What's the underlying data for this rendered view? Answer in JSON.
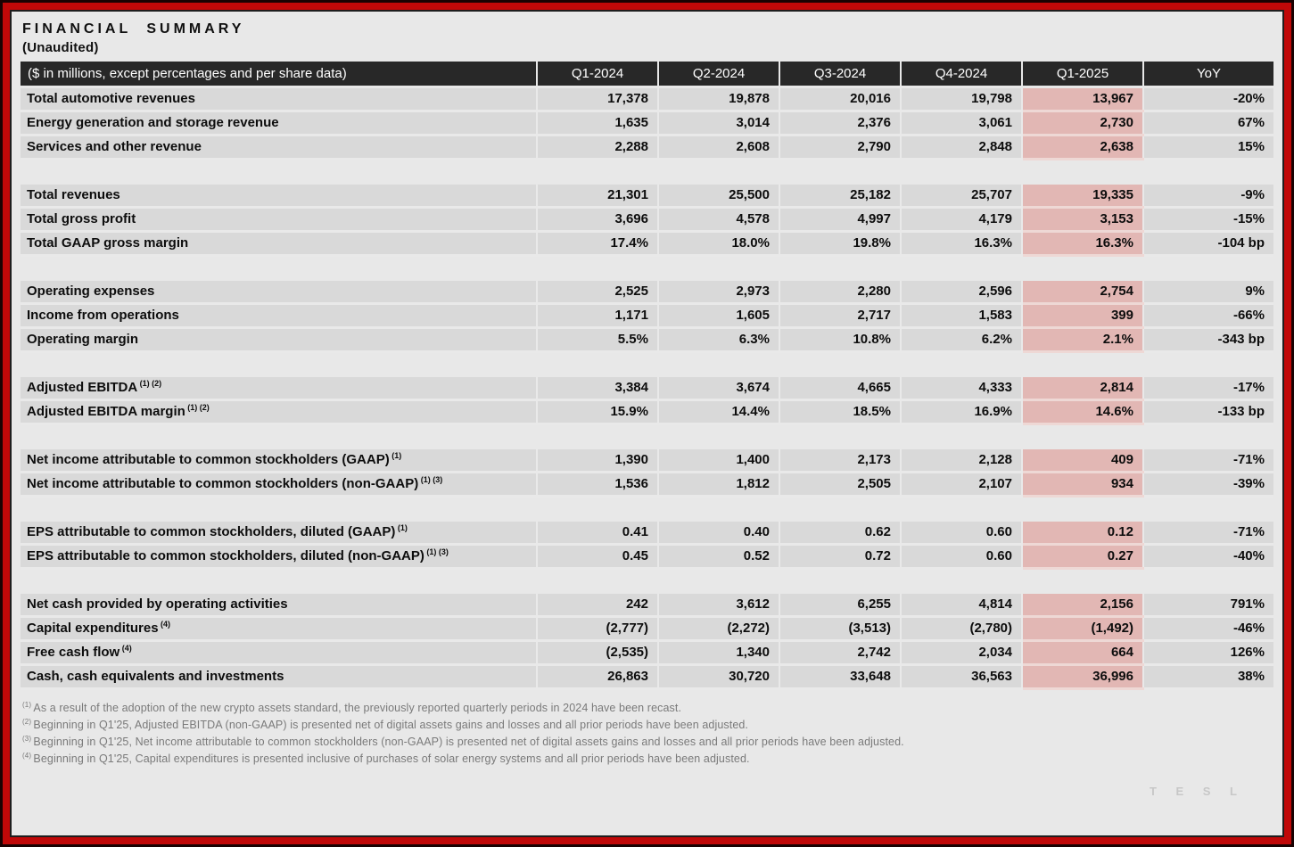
{
  "title": "FINANCIAL SUMMARY",
  "subtitle": "(Unaudited)",
  "watermark": "T E S L",
  "colors": {
    "border_red": "#c00808",
    "header_bg": "#282828",
    "row_bg": "#d9d9d9",
    "page_bg": "#e8e8e8",
    "highlight_pink": "#e2b7b4"
  },
  "table": {
    "label_header": "($ in millions, except percentages and per share data)",
    "columns": [
      "Q1-2024",
      "Q2-2024",
      "Q3-2024",
      "Q4-2024",
      "Q1-2025",
      "YoY"
    ],
    "highlight_column": "Q1-2025",
    "sections": [
      {
        "rows": [
          {
            "label": "Total automotive revenues",
            "sup": "",
            "values": [
              "17,378",
              "19,878",
              "20,016",
              "19,798",
              "13,967",
              "-20%"
            ]
          },
          {
            "label": "Energy generation and storage revenue",
            "sup": "",
            "values": [
              "1,635",
              "3,014",
              "2,376",
              "3,061",
              "2,730",
              "67%"
            ]
          },
          {
            "label": "Services and other revenue",
            "sup": "",
            "values": [
              "2,288",
              "2,608",
              "2,790",
              "2,848",
              "2,638",
              "15%"
            ]
          }
        ]
      },
      {
        "rows": [
          {
            "label": "Total revenues",
            "sup": "",
            "values": [
              "21,301",
              "25,500",
              "25,182",
              "25,707",
              "19,335",
              "-9%"
            ]
          },
          {
            "label": "Total gross profit",
            "sup": "",
            "values": [
              "3,696",
              "4,578",
              "4,997",
              "4,179",
              "3,153",
              "-15%"
            ]
          },
          {
            "label": "Total GAAP gross margin",
            "sup": "",
            "values": [
              "17.4%",
              "18.0%",
              "19.8%",
              "16.3%",
              "16.3%",
              "-104 bp"
            ]
          }
        ]
      },
      {
        "rows": [
          {
            "label": "Operating expenses",
            "sup": "",
            "values": [
              "2,525",
              "2,973",
              "2,280",
              "2,596",
              "2,754",
              "9%"
            ]
          },
          {
            "label": "Income from operations",
            "sup": "",
            "values": [
              "1,171",
              "1,605",
              "2,717",
              "1,583",
              "399",
              "-66%"
            ]
          },
          {
            "label": "Operating margin",
            "sup": "",
            "values": [
              "5.5%",
              "6.3%",
              "10.8%",
              "6.2%",
              "2.1%",
              "-343 bp"
            ]
          }
        ]
      },
      {
        "rows": [
          {
            "label": "Adjusted EBITDA",
            "sup": "(1) (2)",
            "values": [
              "3,384",
              "3,674",
              "4,665",
              "4,333",
              "2,814",
              "-17%"
            ]
          },
          {
            "label": "Adjusted EBITDA margin",
            "sup": "(1) (2)",
            "values": [
              "15.9%",
              "14.4%",
              "18.5%",
              "16.9%",
              "14.6%",
              "-133 bp"
            ]
          }
        ]
      },
      {
        "rows": [
          {
            "label": "Net income attributable to common stockholders (GAAP)",
            "sup": "(1)",
            "values": [
              "1,390",
              "1,400",
              "2,173",
              "2,128",
              "409",
              "-71%"
            ]
          },
          {
            "label": "Net income attributable to common stockholders (non-GAAP)",
            "sup": "(1) (3)",
            "values": [
              "1,536",
              "1,812",
              "2,505",
              "2,107",
              "934",
              "-39%"
            ]
          }
        ]
      },
      {
        "rows": [
          {
            "label": "EPS attributable to common stockholders, diluted (GAAP)",
            "sup": "(1)",
            "values": [
              "0.41",
              "0.40",
              "0.62",
              "0.60",
              "0.12",
              "-71%"
            ]
          },
          {
            "label": "EPS attributable to common stockholders, diluted (non-GAAP)",
            "sup": "(1) (3)",
            "values": [
              "0.45",
              "0.52",
              "0.72",
              "0.60",
              "0.27",
              "-40%"
            ]
          }
        ]
      },
      {
        "rows": [
          {
            "label": "Net cash provided by operating activities",
            "sup": "",
            "values": [
              "242",
              "3,612",
              "6,255",
              "4,814",
              "2,156",
              "791%"
            ]
          },
          {
            "label": "Capital expenditures",
            "sup": "(4)",
            "values": [
              "(2,777)",
              "(2,272)",
              "(3,513)",
              "(2,780)",
              "(1,492)",
              "-46%"
            ]
          },
          {
            "label": "Free cash flow",
            "sup": "(4)",
            "values": [
              "(2,535)",
              "1,340",
              "2,742",
              "2,034",
              "664",
              "126%"
            ]
          },
          {
            "label": "Cash, cash equivalents and investments",
            "sup": "",
            "values": [
              "26,863",
              "30,720",
              "33,648",
              "36,563",
              "36,996",
              "38%"
            ]
          }
        ]
      }
    ]
  },
  "footnotes": [
    {
      "sup": "(1)",
      "text": "As a result of the adoption of the new crypto assets standard, the previously reported quarterly periods in 2024 have been recast."
    },
    {
      "sup": "(2)",
      "text": "Beginning in Q1'25, Adjusted EBITDA (non-GAAP) is presented net of digital assets gains and losses and all prior periods have been adjusted."
    },
    {
      "sup": "(3)",
      "text": "Beginning in Q1'25, Net income attributable to common stockholders (non-GAAP) is presented net of digital assets gains and losses and all prior periods have been adjusted."
    },
    {
      "sup": "(4)",
      "text": "Beginning in Q1'25, Capital expenditures is presented inclusive of purchases of solar energy systems and all prior periods have been adjusted."
    }
  ]
}
